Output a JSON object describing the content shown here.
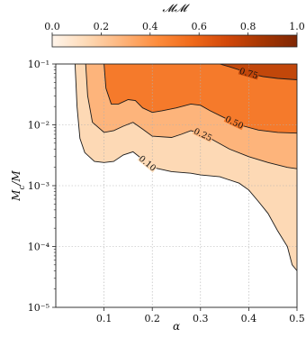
{
  "chart_data": {
    "type": "contour",
    "xlabel": "α",
    "ylabel": "Mc/M",
    "xlim": [
      0.0,
      0.5
    ],
    "ylim": [
      1e-05,
      0.1
    ],
    "y_scale": "log",
    "grid": true,
    "colorbar": {
      "label": "𝓜𝓜",
      "placement": "top",
      "range": [
        0.0,
        1.0
      ],
      "ticks": [
        0.0,
        0.2,
        0.4,
        0.6,
        0.8,
        1.0
      ],
      "tick_labels": [
        "0.0",
        "0.2",
        "0.4",
        "0.6",
        "0.8",
        "1.0"
      ]
    },
    "x_ticks": [
      0.1,
      0.2,
      0.3,
      0.4,
      0.5
    ],
    "x_tick_labels": [
      "0.1",
      "0.2",
      "0.3",
      "0.4",
      "0.5"
    ],
    "y_ticks": [
      1e-05,
      0.0001,
      0.001,
      0.01,
      0.1
    ],
    "y_tick_labels": [
      "10⁻⁵",
      "10⁻⁴",
      "10⁻³",
      "10⁻²",
      "10⁻¹"
    ],
    "levels": [
      {
        "value": 0.1,
        "label": "0.10",
        "color": "#fdd9b5",
        "contour": [
          [
            0.04,
            0.1
          ],
          [
            0.044,
            0.02
          ],
          [
            0.05,
            0.006
          ],
          [
            0.06,
            0.0035
          ],
          [
            0.08,
            0.0025
          ],
          [
            0.1,
            0.0024
          ],
          [
            0.12,
            0.0025
          ],
          [
            0.14,
            0.0032
          ],
          [
            0.16,
            0.0036
          ],
          [
            0.18,
            0.0027
          ],
          [
            0.2,
            0.002
          ],
          [
            0.24,
            0.0017
          ],
          [
            0.28,
            0.0016
          ],
          [
            0.3,
            0.0015
          ],
          [
            0.34,
            0.0014
          ],
          [
            0.38,
            0.0011
          ],
          [
            0.4,
            0.00085
          ],
          [
            0.42,
            0.00055
          ],
          [
            0.44,
            0.00035
          ],
          [
            0.46,
            0.00018
          ],
          [
            0.48,
            0.0001
          ],
          [
            0.49,
            5e-05
          ],
          [
            0.5,
            4e-05
          ]
        ]
      },
      {
        "value": 0.25,
        "label": "0.25",
        "color": "#fdb47b",
        "contour": [
          [
            0.062,
            0.1
          ],
          [
            0.066,
            0.03
          ],
          [
            0.076,
            0.011
          ],
          [
            0.1,
            0.0075
          ],
          [
            0.12,
            0.008
          ],
          [
            0.14,
            0.0095
          ],
          [
            0.16,
            0.011
          ],
          [
            0.18,
            0.0085
          ],
          [
            0.2,
            0.0065
          ],
          [
            0.24,
            0.0062
          ],
          [
            0.26,
            0.007
          ],
          [
            0.28,
            0.008
          ],
          [
            0.3,
            0.0072
          ],
          [
            0.32,
            0.006
          ],
          [
            0.36,
            0.004
          ],
          [
            0.4,
            0.003
          ],
          [
            0.44,
            0.0024
          ],
          [
            0.48,
            0.002
          ],
          [
            0.5,
            0.0019
          ]
        ]
      },
      {
        "value": 0.5,
        "label": "0.50",
        "color": "#f57a2b",
        "contour": [
          [
            0.1,
            0.1
          ],
          [
            0.104,
            0.04
          ],
          [
            0.115,
            0.022
          ],
          [
            0.13,
            0.022
          ],
          [
            0.15,
            0.026
          ],
          [
            0.165,
            0.025
          ],
          [
            0.18,
            0.019
          ],
          [
            0.2,
            0.016
          ],
          [
            0.22,
            0.017
          ],
          [
            0.25,
            0.019
          ],
          [
            0.28,
            0.022
          ],
          [
            0.3,
            0.021
          ],
          [
            0.32,
            0.017
          ],
          [
            0.35,
            0.013
          ],
          [
            0.38,
            0.01
          ],
          [
            0.42,
            0.0082
          ],
          [
            0.46,
            0.0075
          ],
          [
            0.5,
            0.0073
          ]
        ]
      },
      {
        "value": 0.75,
        "label": "0.75",
        "color": "#c2470a",
        "contour": [
          [
            0.34,
            0.1
          ],
          [
            0.36,
            0.09
          ],
          [
            0.38,
            0.08
          ],
          [
            0.4,
            0.07
          ],
          [
            0.43,
            0.062
          ],
          [
            0.46,
            0.058
          ],
          [
            0.5,
            0.055
          ]
        ]
      }
    ],
    "colorscale": [
      "#fff5eb",
      "#fdd9b5",
      "#fdb47b",
      "#fd8c3c",
      "#f06a1a",
      "#d2480a",
      "#a53603",
      "#7f2704"
    ]
  }
}
